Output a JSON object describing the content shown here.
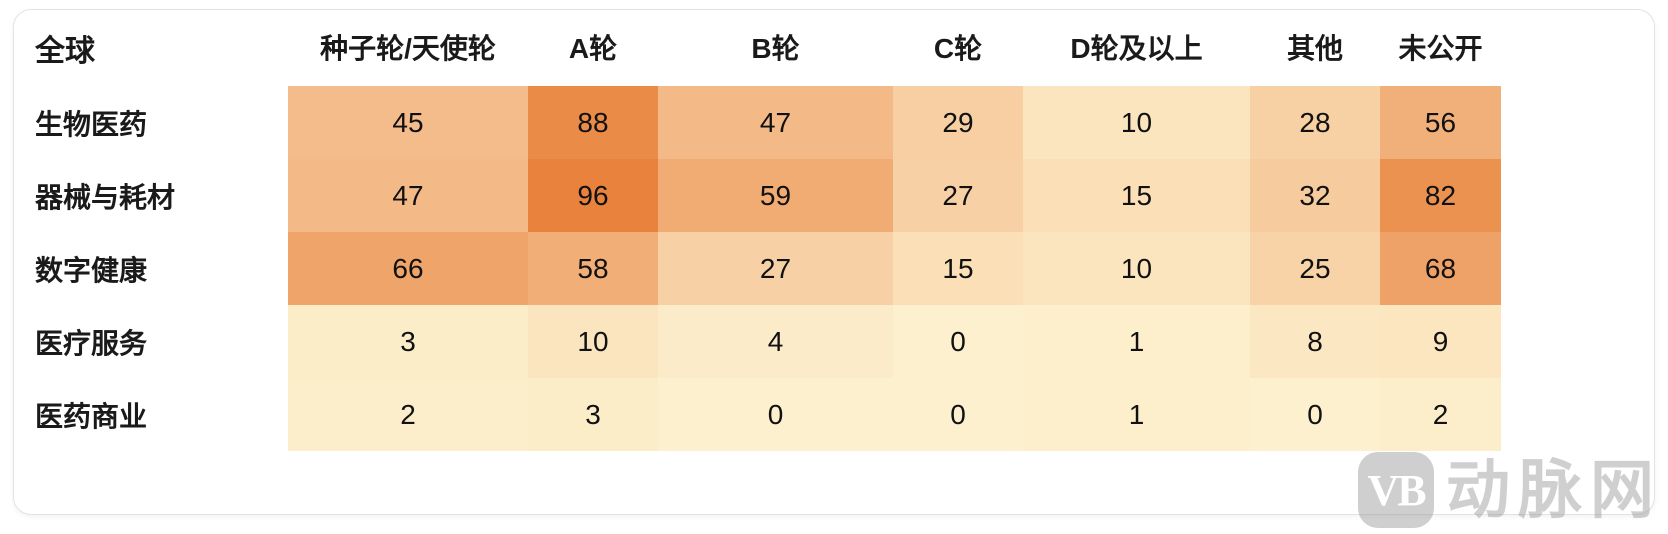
{
  "watermark": {
    "logo_text": "VB",
    "brand_text": "动脉网"
  },
  "chart_data": {
    "type": "heatmap",
    "title": "全球",
    "columns": [
      "种子轮/天使轮",
      "A轮",
      "B轮",
      "C轮",
      "D轮及以上",
      "其他",
      "未公开"
    ],
    "rows": [
      "生物医药",
      "器械与耗材",
      "数字健康",
      "医疗服务",
      "医药商业"
    ],
    "values": [
      [
        45,
        88,
        47,
        29,
        10,
        28,
        56
      ],
      [
        47,
        96,
        59,
        27,
        15,
        32,
        82
      ],
      [
        66,
        58,
        27,
        15,
        10,
        25,
        68
      ],
      [
        3,
        10,
        4,
        0,
        1,
        8,
        9
      ],
      [
        2,
        3,
        0,
        0,
        1,
        0,
        2
      ]
    ],
    "color_scale": {
      "min_value": 0,
      "max_value": 96,
      "min_color": "#FDF0CE",
      "max_color": "#E9823C"
    },
    "text_color": "#111111",
    "legend_position": "none",
    "grid": "off"
  }
}
